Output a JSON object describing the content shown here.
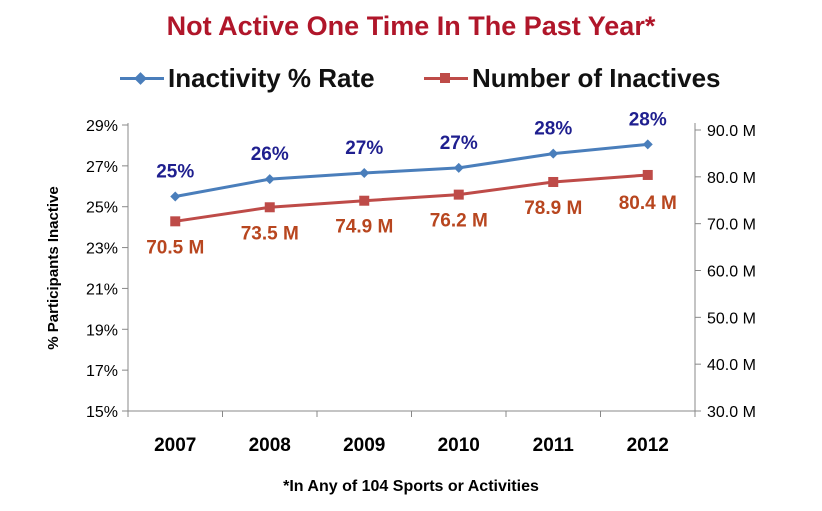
{
  "chart_data": {
    "type": "line",
    "title": "Not Active One Time In The Past Year*",
    "footnote": "*In  Any of 104 Sports or Activities",
    "categories": [
      "2007",
      "2008",
      "2009",
      "2010",
      "2011",
      "2012"
    ],
    "ylabel": "% Participants Inactive",
    "y_left": {
      "range": [
        0.15,
        0.29
      ],
      "ticks": [
        0.15,
        0.17,
        0.19,
        0.21,
        0.23,
        0.25,
        0.27,
        0.29
      ],
      "tick_labels": [
        "15%",
        "17%",
        "19%",
        "21%",
        "23%",
        "25%",
        "27%",
        "29%"
      ]
    },
    "y_right": {
      "range": [
        30,
        90
      ],
      "ticks": [
        30,
        40,
        50,
        60,
        70,
        80,
        90
      ],
      "tick_labels": [
        "30.0 M",
        "40.0 M",
        "50.0 M",
        "60.0 M",
        "70.0 M",
        "80.0 M",
        "90.0 M"
      ]
    },
    "grid": false,
    "legend_position": "top",
    "series": [
      {
        "name": "Inactivity % Rate",
        "axis": "left",
        "color": "#4a7ebb",
        "marker": "diamond",
        "values": [
          0.255,
          0.2635,
          0.2665,
          0.269,
          0.276,
          0.2805
        ],
        "labels": [
          "25%",
          "26%",
          "27%",
          "27%",
          "28%",
          "28%"
        ],
        "label_color": "#1f1f8f"
      },
      {
        "name": "Number of Inactives",
        "axis": "right",
        "color": "#be4b48",
        "marker": "square",
        "values": [
          70.5,
          73.5,
          74.9,
          76.2,
          78.9,
          80.4
        ],
        "labels": [
          "70.5 M",
          "73.5 M",
          "74.9 M",
          "76.2 M",
          "78.9 M",
          "80.4 M"
        ],
        "label_color": "#b8461f"
      }
    ]
  }
}
